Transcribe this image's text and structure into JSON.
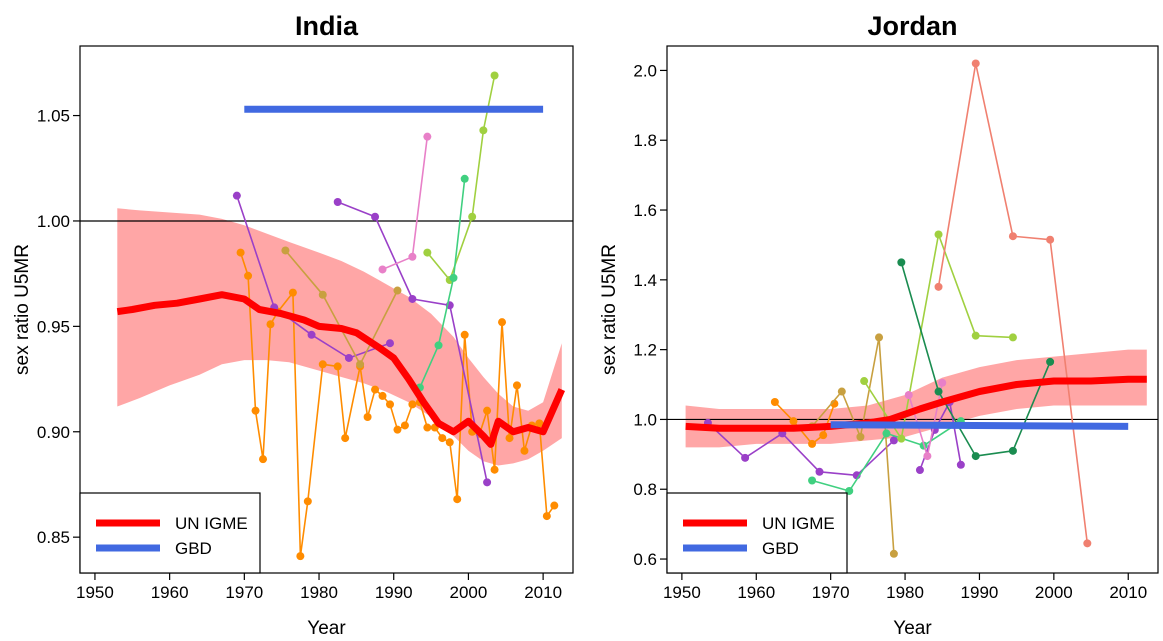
{
  "chart_data": [
    {
      "type": "line",
      "title": "India",
      "xlabel": "Year",
      "ylabel": "sex ratio U5MR",
      "xlim": [
        1948,
        2014
      ],
      "ylim": [
        0.833,
        1.083
      ],
      "xticks": [
        1950,
        1960,
        1970,
        1980,
        1990,
        2000,
        2010
      ],
      "xtick_labels": [
        "1950",
        "1960",
        "1970",
        "1980",
        "1990",
        "2000",
        "2010"
      ],
      "yticks": [
        0.85,
        0.9,
        0.95,
        1.0,
        1.05
      ],
      "ytick_labels": [
        "0.85",
        "0.90",
        "0.95",
        "1.00",
        "1.05"
      ],
      "reference_line": 1.0,
      "legend": {
        "position": "bottom-left",
        "entries": [
          {
            "label": "UN IGME",
            "color": "#ff0000"
          },
          {
            "label": "GBD",
            "color": "#4169e1"
          }
        ]
      },
      "band": {
        "color": "#ff8080",
        "x": [
          1953,
          1956,
          1960,
          1964,
          1967,
          1970,
          1973,
          1976,
          1980,
          1983,
          1986,
          1989,
          1992,
          1995,
          1998,
          2000,
          2002,
          2004,
          2006,
          2008,
          2010,
          2012.5
        ],
        "upper": [
          1.006,
          1.005,
          1.004,
          1.003,
          1.001,
          0.998,
          0.994,
          0.99,
          0.985,
          0.981,
          0.976,
          0.97,
          0.964,
          0.956,
          0.945,
          0.935,
          0.926,
          0.918,
          0.912,
          0.91,
          0.914,
          0.942
        ],
        "lower": [
          0.912,
          0.916,
          0.922,
          0.927,
          0.932,
          0.934,
          0.934,
          0.933,
          0.929,
          0.926,
          0.923,
          0.919,
          0.914,
          0.907,
          0.898,
          0.891,
          0.886,
          0.884,
          0.885,
          0.887,
          0.891,
          0.897
        ]
      },
      "series": [
        {
          "name": "UN IGME",
          "color": "#ff0000",
          "width": 7,
          "points": false,
          "x": [
            1953,
            1955,
            1958,
            1961,
            1964,
            1967,
            1970,
            1972,
            1975,
            1978,
            1980,
            1983,
            1985,
            1988,
            1990,
            1992,
            1994,
            1996,
            1998,
            2000,
            2002,
            2003,
            2004,
            2006,
            2008,
            2010,
            2011,
            2012.5
          ],
          "y": [
            0.957,
            0.958,
            0.96,
            0.961,
            0.963,
            0.965,
            0.963,
            0.958,
            0.956,
            0.953,
            0.95,
            0.949,
            0.947,
            0.94,
            0.935,
            0.925,
            0.914,
            0.904,
            0.9,
            0.905,
            0.898,
            0.894,
            0.905,
            0.9,
            0.902,
            0.9,
            0.908,
            0.92
          ]
        },
        {
          "name": "GBD",
          "color": "#4169e1",
          "width": 7,
          "points": false,
          "x": [
            1970,
            2010
          ],
          "y": [
            1.053,
            1.053
          ]
        },
        {
          "color": "#ff8c00",
          "width": 1.6,
          "points": true,
          "x": [
            1969.5,
            1970.5,
            1971.5,
            1972.5,
            1973.5,
            1974.5,
            1976.5,
            1977.5,
            1978.5,
            1980.5,
            1982.5,
            1983.5,
            1985.5,
            1986.5,
            1987.5,
            1988.5,
            1989.5,
            1990.5,
            1991.5,
            1992.5,
            1993.5,
            1994.5,
            1995.5,
            1996.5,
            1997.5,
            1998.5,
            1999.5,
            2000.5,
            2001.5,
            2002.5,
            2003.5,
            2004.5,
            2005.5,
            2006.5,
            2007.5,
            2008.5,
            2009.5,
            2010.5,
            2011.5
          ],
          "y": [
            0.985,
            0.974,
            0.91,
            0.887,
            0.951,
            0.957,
            0.966,
            0.841,
            0.867,
            0.932,
            0.931,
            0.897,
            0.931,
            0.907,
            0.92,
            0.917,
            0.913,
            0.901,
            0.903,
            0.913,
            0.914,
            0.902,
            0.902,
            0.897,
            0.895,
            0.868,
            0.946,
            0.9,
            0.899,
            0.91,
            0.882,
            0.952,
            0.897,
            0.922,
            0.891,
            0.903,
            0.904,
            0.86,
            0.865
          ]
        },
        {
          "color": "#9a40c8",
          "width": 1.6,
          "points": true,
          "x": [
            1969,
            1974,
            1979,
            1984,
            1989.5
          ],
          "y": [
            1.012,
            0.959,
            0.946,
            0.935,
            0.942
          ]
        },
        {
          "color": "#9a40c8",
          "width": 1.6,
          "points": true,
          "x": [
            1982.5,
            1987.5,
            1992.5,
            1997.5,
            2002.5
          ],
          "y": [
            1.009,
            1.002,
            0.963,
            0.96,
            0.876
          ]
        },
        {
          "color": "#c8a040",
          "width": 1.6,
          "points": true,
          "x": [
            1975.5,
            1980.5,
            1985.5,
            1990.5
          ],
          "y": [
            0.986,
            0.965,
            0.932,
            0.967
          ]
        },
        {
          "color": "#e880c8",
          "width": 1.6,
          "points": true,
          "x": [
            1988.5,
            1992.5,
            1994.5
          ],
          "y": [
            0.977,
            0.983,
            1.04
          ]
        },
        {
          "color": "#a0d040",
          "width": 1.6,
          "points": true,
          "x": [
            1994.5,
            1997.5,
            2000.5,
            2002,
            2003.5
          ],
          "y": [
            0.985,
            0.972,
            1.002,
            1.043,
            1.069
          ]
        },
        {
          "color": "#40d080",
          "width": 1.6,
          "points": true,
          "x": [
            1993.5,
            1996,
            1998,
            1999.5
          ],
          "y": [
            0.921,
            0.941,
            0.973,
            1.02
          ]
        }
      ]
    },
    {
      "type": "line",
      "title": "Jordan",
      "xlabel": "Year",
      "ylabel": "sex ratio U5MR",
      "xlim": [
        1948,
        2014
      ],
      "ylim": [
        0.56,
        2.07
      ],
      "xticks": [
        1950,
        1960,
        1970,
        1980,
        1990,
        2000,
        2010
      ],
      "xtick_labels": [
        "1950",
        "1960",
        "1970",
        "1980",
        "1990",
        "2000",
        "2010"
      ],
      "yticks": [
        0.6,
        0.8,
        1.0,
        1.2,
        1.4,
        1.6,
        1.8,
        2.0
      ],
      "ytick_labels": [
        "0.6",
        "0.8",
        "1.0",
        "1.2",
        "1.4",
        "1.6",
        "1.8",
        "2.0"
      ],
      "reference_line": 1.0,
      "legend": {
        "position": "bottom-left",
        "entries": [
          {
            "label": "UN IGME",
            "color": "#ff0000"
          },
          {
            "label": "GBD",
            "color": "#4169e1"
          }
        ]
      },
      "band": {
        "color": "#ff8080",
        "x": [
          1950.5,
          1955,
          1960,
          1965,
          1970,
          1975,
          1980,
          1985,
          1990,
          1995,
          2000,
          2005,
          2010,
          2012.5
        ],
        "upper": [
          1.04,
          1.03,
          1.03,
          1.03,
          1.03,
          1.04,
          1.07,
          1.12,
          1.15,
          1.17,
          1.18,
          1.19,
          1.2,
          1.2
        ],
        "lower": [
          0.92,
          0.92,
          0.93,
          0.93,
          0.93,
          0.94,
          0.95,
          0.98,
          1.01,
          1.03,
          1.04,
          1.04,
          1.04,
          1.04
        ]
      },
      "series": [
        {
          "name": "UN IGME",
          "color": "#ff0000",
          "width": 7,
          "points": false,
          "x": [
            1950.5,
            1955,
            1960,
            1965,
            1970,
            1975,
            1978,
            1982,
            1985,
            1990,
            1995,
            2000,
            2005,
            2010,
            2012.5
          ],
          "y": [
            0.98,
            0.975,
            0.975,
            0.975,
            0.98,
            0.99,
            1.0,
            1.03,
            1.05,
            1.08,
            1.1,
            1.11,
            1.11,
            1.115,
            1.115
          ]
        },
        {
          "name": "GBD",
          "color": "#4169e1",
          "width": 7,
          "points": false,
          "x": [
            1970,
            2010
          ],
          "y": [
            0.985,
            0.98
          ]
        },
        {
          "color": "#9a40c8",
          "width": 1.6,
          "points": true,
          "x": [
            1953.5,
            1958.5,
            1963.5,
            1968.5,
            1973.5,
            1978.5
          ],
          "y": [
            0.99,
            0.89,
            0.96,
            0.85,
            0.84,
            0.94
          ]
        },
        {
          "color": "#9a40c8",
          "width": 1.6,
          "points": true,
          "x": [
            1982,
            1984,
            1986,
            1987.5
          ],
          "y": [
            0.855,
            0.97,
            1.05,
            0.87
          ]
        },
        {
          "color": "#ff8c00",
          "width": 1.6,
          "points": true,
          "x": [
            1962.5,
            1965,
            1967.5,
            1969,
            1970.5
          ],
          "y": [
            1.05,
            0.995,
            0.93,
            0.955,
            1.045
          ]
        },
        {
          "color": "#c8a040",
          "width": 1.6,
          "points": true,
          "x": [
            1967.5,
            1971.5,
            1974,
            1976.5,
            1978.5
          ],
          "y": [
            0.98,
            1.08,
            0.95,
            1.235,
            0.615
          ]
        },
        {
          "color": "#40d080",
          "width": 1.6,
          "points": true,
          "x": [
            1967.5,
            1972.5,
            1977.5,
            1982.5,
            1987.5
          ],
          "y": [
            0.825,
            0.795,
            0.96,
            0.925,
            0.995
          ]
        },
        {
          "color": "#a0d040",
          "width": 1.6,
          "points": true,
          "x": [
            1974.5,
            1979.5,
            1984.5,
            1989.5,
            1994.5
          ],
          "y": [
            1.11,
            0.945,
            1.53,
            1.24,
            1.235
          ]
        },
        {
          "color": "#e880c8",
          "width": 1.6,
          "points": true,
          "x": [
            1980.5,
            1983,
            1985
          ],
          "y": [
            1.07,
            0.895,
            1.105
          ]
        },
        {
          "color": "#1a8c50",
          "width": 1.6,
          "points": true,
          "x": [
            1979.5,
            1984.5,
            1989.5,
            1994.5,
            1999.5
          ],
          "y": [
            1.45,
            1.08,
            0.895,
            0.91,
            1.165
          ]
        },
        {
          "color": "#f08070",
          "width": 1.6,
          "points": true,
          "x": [
            1984.5,
            1989.5,
            1994.5,
            1999.5,
            2004.5
          ],
          "y": [
            1.38,
            2.02,
            1.525,
            1.515,
            0.645
          ]
        }
      ]
    }
  ]
}
